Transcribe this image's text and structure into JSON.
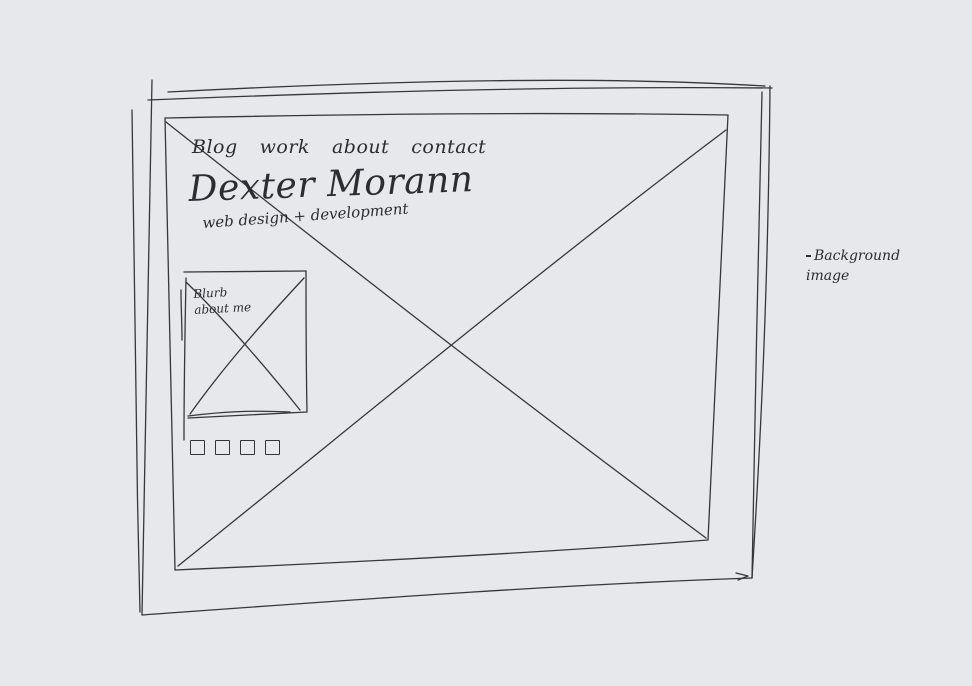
{
  "nav": {
    "items": [
      {
        "label": "Blog"
      },
      {
        "label": "work"
      },
      {
        "label": "about"
      },
      {
        "label": "contact"
      }
    ]
  },
  "header": {
    "site_name": "Dexter Morann",
    "tagline": "web design + development"
  },
  "card": {
    "blurb": "Blurb about me"
  },
  "social": {
    "count": 4
  },
  "annotation": {
    "text": "Background image"
  }
}
